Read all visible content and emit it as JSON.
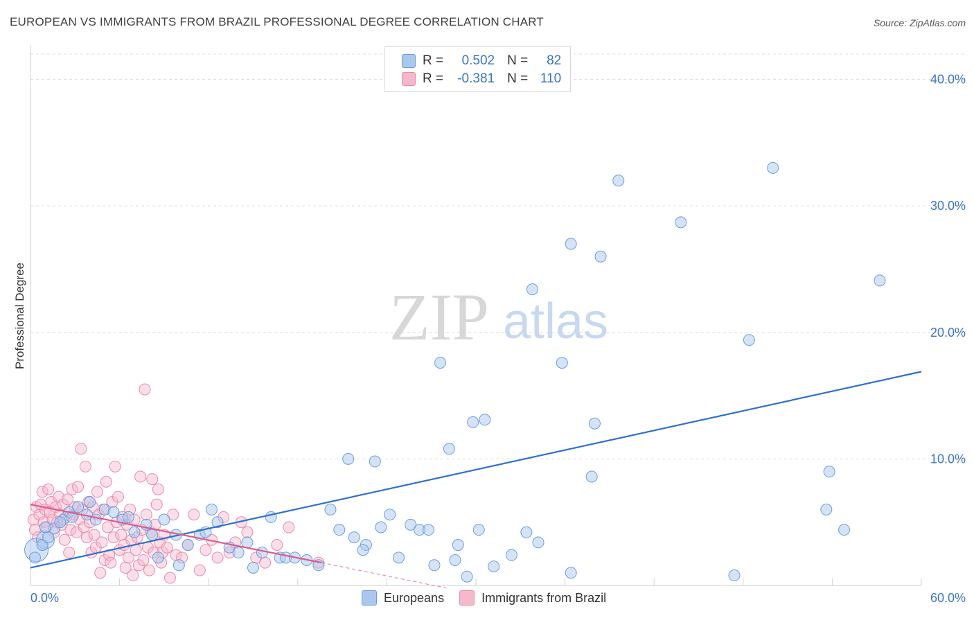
{
  "title": "EUROPEAN VS IMMIGRANTS FROM BRAZIL PROFESSIONAL DEGREE CORRELATION CHART",
  "source": "Source: ZipAtlas.com",
  "watermark": {
    "zip": "ZIP",
    "atlas": "atlas"
  },
  "legend": {
    "r_label": "R =",
    "n_label": "N =",
    "rows": [
      {
        "r": "0.502",
        "n": "82"
      },
      {
        "r": "-0.381",
        "n": "110"
      }
    ]
  },
  "colors": {
    "blue_fill": "#aac8ee",
    "blue_stroke": "#6b9de0",
    "blue_line": "#2e6fd0",
    "pink_fill": "#f6b8cb",
    "pink_stroke": "#ea8aa8",
    "pink_line": "#e05a8a",
    "tick_text": "#3a73c6",
    "grid": "#dcdcdc"
  },
  "chart_data": {
    "type": "scatter",
    "title": "EUROPEAN VS IMMIGRANTS FROM BRAZIL PROFESSIONAL DEGREE CORRELATION CHART",
    "xlabel": "",
    "ylabel": "Professional Degree",
    "xlim": [
      0,
      60
    ],
    "ylim": [
      0,
      42
    ],
    "x_tick_labels": [
      "0.0%",
      "60.0%"
    ],
    "y_ticks": [
      10,
      20,
      30,
      40
    ],
    "y_tick_labels": [
      "10.0%",
      "20.0%",
      "30.0%",
      "40.0%"
    ],
    "legend_position": "bottom-center",
    "series": [
      {
        "name": "Europeans",
        "r": 0.502,
        "n": 82,
        "trend": {
          "x0": 0,
          "y0": 1.4,
          "x1": 60,
          "y1": 16.9
        },
        "points": [
          [
            0.3,
            2.2
          ],
          [
            0.8,
            3.2
          ],
          [
            1.2,
            3.8
          ],
          [
            1.6,
            4.5
          ],
          [
            2.2,
            5.2
          ],
          [
            2.6,
            5.8
          ],
          [
            3.2,
            6.2
          ],
          [
            3.8,
            5.6
          ],
          [
            4.4,
            5.2
          ],
          [
            5.0,
            6.0
          ],
          [
            5.6,
            5.8
          ],
          [
            6.2,
            5.2
          ],
          [
            7.0,
            4.2
          ],
          [
            7.8,
            4.8
          ],
          [
            8.2,
            4.0
          ],
          [
            9.0,
            5.2
          ],
          [
            9.8,
            4.0
          ],
          [
            10.6,
            3.2
          ],
          [
            11.4,
            4.0
          ],
          [
            12.2,
            6.0
          ],
          [
            12.6,
            5.0
          ],
          [
            13.4,
            3.0
          ],
          [
            14.6,
            3.4
          ],
          [
            15.6,
            2.6
          ],
          [
            16.2,
            5.4
          ],
          [
            16.8,
            2.2
          ],
          [
            17.2,
            2.2
          ],
          [
            17.8,
            2.2
          ],
          [
            18.6,
            2.0
          ],
          [
            19.4,
            1.6
          ],
          [
            20.2,
            6.0
          ],
          [
            20.8,
            4.4
          ],
          [
            21.4,
            10.0
          ],
          [
            21.8,
            3.8
          ],
          [
            22.6,
            3.2
          ],
          [
            22.4,
            2.8
          ],
          [
            23.2,
            9.8
          ],
          [
            23.6,
            4.6
          ],
          [
            24.2,
            5.6
          ],
          [
            24.8,
            2.2
          ],
          [
            25.6,
            4.8
          ],
          [
            26.2,
            4.4
          ],
          [
            26.8,
            4.4
          ],
          [
            27.2,
            1.6
          ],
          [
            27.6,
            17.6
          ],
          [
            28.2,
            10.8
          ],
          [
            28.6,
            2.0
          ],
          [
            28.8,
            3.2
          ],
          [
            29.4,
            0.7
          ],
          [
            29.8,
            12.9
          ],
          [
            30.2,
            4.4
          ],
          [
            30.6,
            13.1
          ],
          [
            31.2,
            1.5
          ],
          [
            32.4,
            2.4
          ],
          [
            33.4,
            4.2
          ],
          [
            33.8,
            23.4
          ],
          [
            34.2,
            3.4
          ],
          [
            35.8,
            17.6
          ],
          [
            36.4,
            27.0
          ],
          [
            36.4,
            1.0
          ],
          [
            37.8,
            8.6
          ],
          [
            38.0,
            12.8
          ],
          [
            38.4,
            26.0
          ],
          [
            39.6,
            32.0
          ],
          [
            43.8,
            28.7
          ],
          [
            47.4,
            0.8
          ],
          [
            48.4,
            19.4
          ],
          [
            50.0,
            33.0
          ],
          [
            53.6,
            6.0
          ],
          [
            53.8,
            9.0
          ],
          [
            54.8,
            4.4
          ],
          [
            57.2,
            24.1
          ],
          [
            2.8,
            5.4
          ],
          [
            4.0,
            6.6
          ],
          [
            6.6,
            5.4
          ],
          [
            8.6,
            2.2
          ],
          [
            10.0,
            1.6
          ],
          [
            11.8,
            4.2
          ],
          [
            14.0,
            2.6
          ],
          [
            15.0,
            1.4
          ],
          [
            1.0,
            4.6
          ],
          [
            2.0,
            5.0
          ]
        ]
      },
      {
        "name": "Immigrants from Brazil",
        "r": -0.381,
        "n": 110,
        "trend": {
          "x0": 0,
          "y0": 6.4,
          "x1": 19.6,
          "y1": 1.8,
          "dash_to_x": 28.0,
          "dash_to_y": -0.2
        },
        "points": [
          [
            0.2,
            5.2
          ],
          [
            0.3,
            4.4
          ],
          [
            0.4,
            6.2
          ],
          [
            0.5,
            3.8
          ],
          [
            0.6,
            5.6
          ],
          [
            0.7,
            6.4
          ],
          [
            0.8,
            7.4
          ],
          [
            0.9,
            5.0
          ],
          [
            1.0,
            6.0
          ],
          [
            1.1,
            4.6
          ],
          [
            1.2,
            7.6
          ],
          [
            1.3,
            5.8
          ],
          [
            1.4,
            6.6
          ],
          [
            1.5,
            5.2
          ],
          [
            1.6,
            4.2
          ],
          [
            1.7,
            6.2
          ],
          [
            1.8,
            5.0
          ],
          [
            1.9,
            7.0
          ],
          [
            2.0,
            5.6
          ],
          [
            2.1,
            4.8
          ],
          [
            2.2,
            6.4
          ],
          [
            2.3,
            3.6
          ],
          [
            2.4,
            5.4
          ],
          [
            2.5,
            6.8
          ],
          [
            2.6,
            2.6
          ],
          [
            2.7,
            4.4
          ],
          [
            2.8,
            7.6
          ],
          [
            2.9,
            5.6
          ],
          [
            3.0,
            6.2
          ],
          [
            3.1,
            4.2
          ],
          [
            3.2,
            7.8
          ],
          [
            3.3,
            5.2
          ],
          [
            3.4,
            10.8
          ],
          [
            3.5,
            6.0
          ],
          [
            3.6,
            4.6
          ],
          [
            3.7,
            9.4
          ],
          [
            3.8,
            3.8
          ],
          [
            3.9,
            6.6
          ],
          [
            4.0,
            5.0
          ],
          [
            4.1,
            2.6
          ],
          [
            4.2,
            6.2
          ],
          [
            4.3,
            4.0
          ],
          [
            4.4,
            3.0
          ],
          [
            4.5,
            7.4
          ],
          [
            4.6,
            5.6
          ],
          [
            4.7,
            1.0
          ],
          [
            4.8,
            3.4
          ],
          [
            4.9,
            6.0
          ],
          [
            5.0,
            2.0
          ],
          [
            5.1,
            8.2
          ],
          [
            5.2,
            4.6
          ],
          [
            5.3,
            2.4
          ],
          [
            5.4,
            1.8
          ],
          [
            5.5,
            6.6
          ],
          [
            5.6,
            3.8
          ],
          [
            5.7,
            9.4
          ],
          [
            5.8,
            5.0
          ],
          [
            5.9,
            7.0
          ],
          [
            6.0,
            2.8
          ],
          [
            6.1,
            4.0
          ],
          [
            6.2,
            5.4
          ],
          [
            6.3,
            3.2
          ],
          [
            6.4,
            1.4
          ],
          [
            6.5,
            4.8
          ],
          [
            6.6,
            2.2
          ],
          [
            6.7,
            6.0
          ],
          [
            6.8,
            3.6
          ],
          [
            6.9,
            0.8
          ],
          [
            7.0,
            5.2
          ],
          [
            7.1,
            2.8
          ],
          [
            7.2,
            3.8
          ],
          [
            7.3,
            1.6
          ],
          [
            7.4,
            8.6
          ],
          [
            7.5,
            4.4
          ],
          [
            7.6,
            2.0
          ],
          [
            7.7,
            15.5
          ],
          [
            7.8,
            5.6
          ],
          [
            7.9,
            3.0
          ],
          [
            8.0,
            1.2
          ],
          [
            8.1,
            4.2
          ],
          [
            8.2,
            8.4
          ],
          [
            8.3,
            2.6
          ],
          [
            8.4,
            4.8
          ],
          [
            8.5,
            6.4
          ],
          [
            8.6,
            7.6
          ],
          [
            8.7,
            3.4
          ],
          [
            8.8,
            1.8
          ],
          [
            8.9,
            2.6
          ],
          [
            9.0,
            4.0
          ],
          [
            9.2,
            3.0
          ],
          [
            9.4,
            0.6
          ],
          [
            9.6,
            5.6
          ],
          [
            9.8,
            2.4
          ],
          [
            10.2,
            2.2
          ],
          [
            10.6,
            3.2
          ],
          [
            11.0,
            5.6
          ],
          [
            11.4,
            1.2
          ],
          [
            11.8,
            2.8
          ],
          [
            12.2,
            3.6
          ],
          [
            12.6,
            2.2
          ],
          [
            13.0,
            5.4
          ],
          [
            13.4,
            2.6
          ],
          [
            13.8,
            3.4
          ],
          [
            14.2,
            5.0
          ],
          [
            14.6,
            4.2
          ],
          [
            15.2,
            2.2
          ],
          [
            15.8,
            1.8
          ],
          [
            16.6,
            3.2
          ],
          [
            17.4,
            4.6
          ],
          [
            19.4,
            1.8
          ]
        ]
      }
    ]
  }
}
